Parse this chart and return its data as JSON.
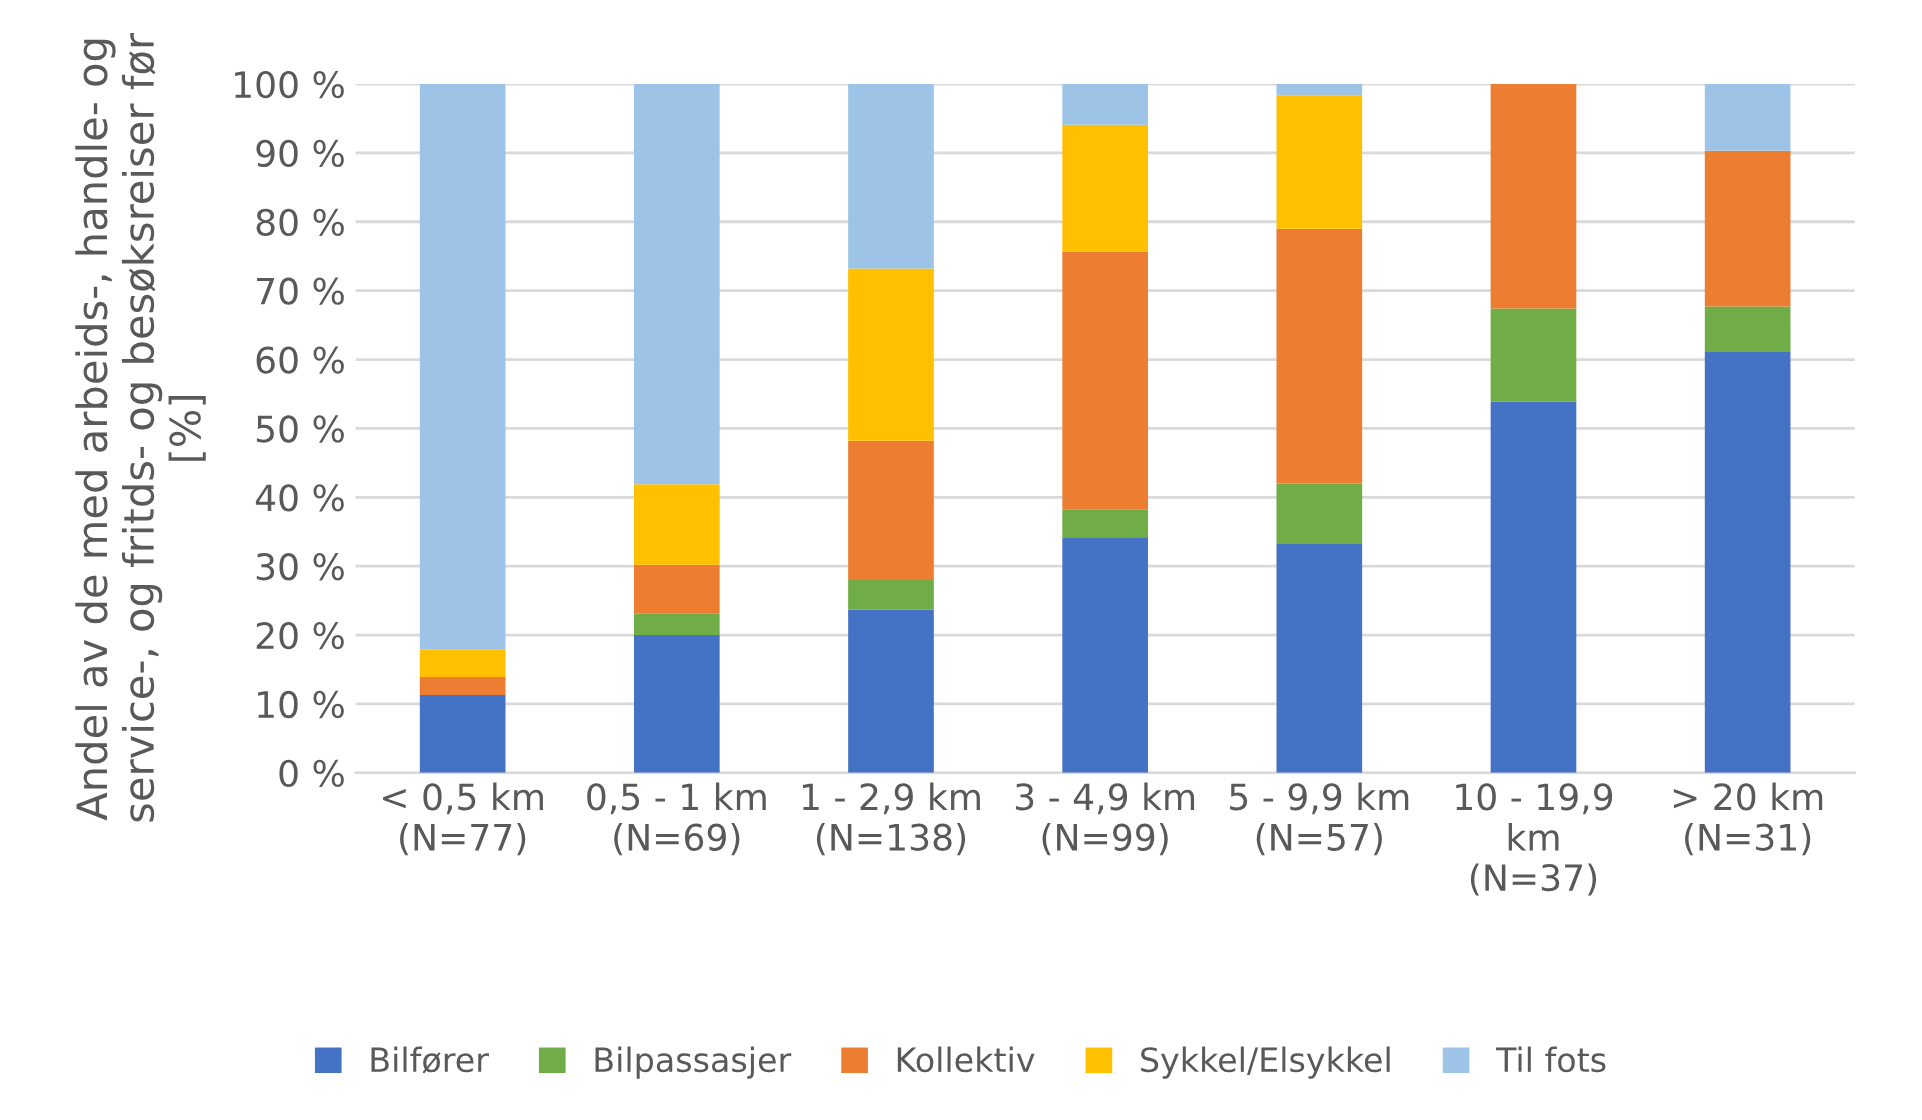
{
  "chart_data": {
    "type": "bar",
    "stacked": true,
    "ylabel": "Andel av de med arbeids-, handle- og\nservice-, og fritds- og besøksreiser før\n[%]",
    "categories": [
      "< 0,5 km\n(N=77)",
      "0,5 - 1 km\n(N=69)",
      "1 - 2,9 km\n(N=138)",
      "3 - 4,9 km\n(N=99)",
      "5 - 9,9 km\n(N=57)",
      "10 - 19,9\nkm\n(N=37)",
      "> 20 km\n(N=31)"
    ],
    "series": [
      {
        "name": "Bilfører",
        "color": "#4472c4",
        "values": [
          11.3,
          20.0,
          23.7,
          34.1,
          33.2,
          53.9,
          61.2
        ]
      },
      {
        "name": "Bilpassasjer",
        "color": "#70ad47",
        "values": [
          0,
          3.1,
          4.3,
          4.1,
          8.8,
          13.5,
          6.5
        ]
      },
      {
        "name": "Kollektiv",
        "color": "#ed7d31",
        "values": [
          2.6,
          7.1,
          20.2,
          37.5,
          37.0,
          32.6,
          22.6
        ]
      },
      {
        "name": "Sykkel/Elsykkel",
        "color": "#ffc000",
        "values": [
          4.0,
          11.7,
          25.0,
          18.4,
          19.3,
          0,
          0
        ]
      },
      {
        "name": "Til fots",
        "color": "#9dc3e6",
        "values": [
          82.1,
          58.1,
          26.8,
          5.9,
          1.7,
          0,
          9.7
        ]
      }
    ],
    "ylim": [
      0,
      100
    ],
    "yticks": [
      {
        "value": 0,
        "label": "0 %"
      },
      {
        "value": 10,
        "label": "10 %"
      },
      {
        "value": 20,
        "label": "20 %"
      },
      {
        "value": 30,
        "label": "30 %"
      },
      {
        "value": 40,
        "label": "40 %"
      },
      {
        "value": 50,
        "label": "50 %"
      },
      {
        "value": 60,
        "label": "60 %"
      },
      {
        "value": 70,
        "label": "70 %"
      },
      {
        "value": 80,
        "label": "80 %"
      },
      {
        "value": 90,
        "label": "90 %"
      },
      {
        "value": 100,
        "label": "100 %"
      }
    ],
    "grid": "y",
    "legend": "bottom"
  }
}
